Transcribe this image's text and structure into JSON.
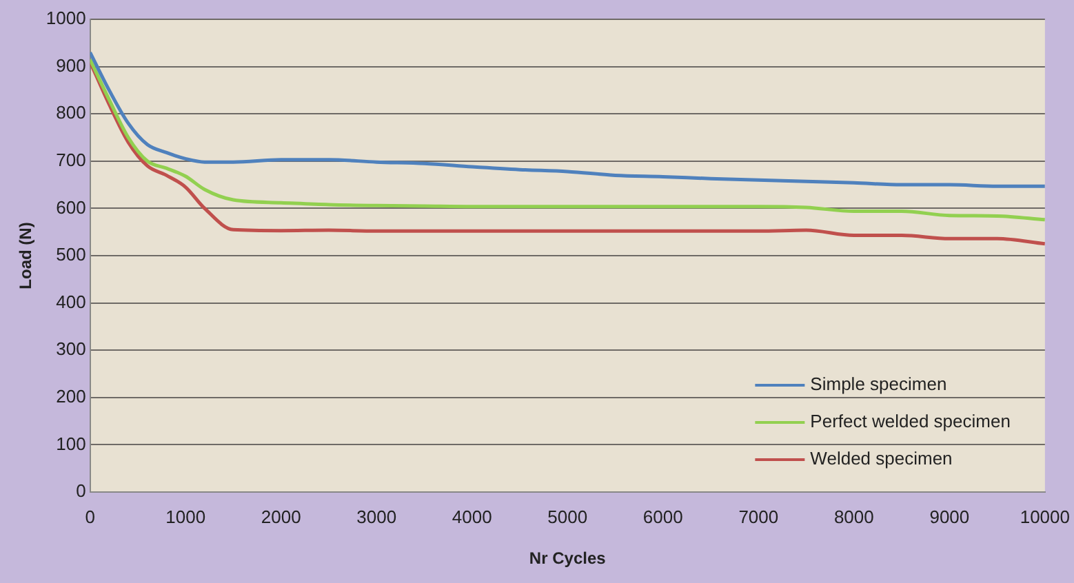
{
  "chart_data": {
    "type": "line",
    "xlabel": "Nr Cycles",
    "ylabel": "Load (N)",
    "xlim": [
      0,
      10000
    ],
    "xticks": [
      0,
      1000,
      2000,
      3000,
      4000,
      5000,
      6000,
      7000,
      8000,
      9000,
      10000
    ],
    "ylim": [
      0,
      1000
    ],
    "yticks": [
      0,
      100,
      200,
      300,
      400,
      500,
      600,
      700,
      800,
      900,
      1000
    ],
    "grid": "y",
    "legend": "bottom right",
    "marker": "none",
    "line_style": "solid",
    "x": [
      0,
      200,
      400,
      600,
      800,
      1000,
      1200,
      1500,
      2000,
      2500,
      3000,
      3500,
      4000,
      4500,
      5000,
      5500,
      6000,
      6500,
      7000,
      7500,
      8000,
      8500,
      9000,
      9500,
      10000
    ],
    "series": [
      {
        "name": "Simple specimen",
        "color": "#4f81bd",
        "values": [
          930,
          850,
          780,
          735,
          718,
          705,
          698,
          698,
          703,
          703,
          698,
          695,
          688,
          682,
          678,
          670,
          667,
          663,
          660,
          657,
          654,
          650,
          650,
          647,
          647
        ]
      },
      {
        "name": "Perfect welded specimen",
        "color": "#92d050",
        "values": [
          915,
          830,
          750,
          700,
          685,
          668,
          640,
          618,
          612,
          608,
          606,
          605,
          604,
          604,
          604,
          604,
          604,
          604,
          604,
          602,
          594,
          594,
          585,
          584,
          576
        ]
      },
      {
        "name": "Welded specimen",
        "color": "#c0504d",
        "values": [
          910,
          820,
          740,
          690,
          670,
          645,
          600,
          555,
          553,
          554,
          552,
          552,
          552,
          552,
          552,
          552,
          552,
          552,
          552,
          554,
          543,
          543,
          536,
          536,
          525
        ]
      }
    ]
  }
}
